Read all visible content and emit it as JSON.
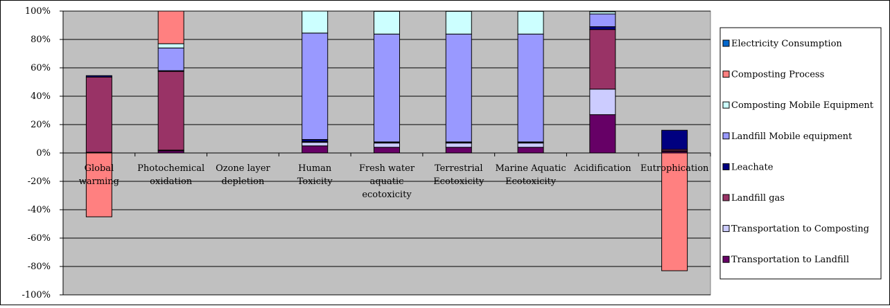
{
  "chart_data": {
    "type": "bar",
    "stacked": true,
    "percent": true,
    "ylim": [
      -100,
      100
    ],
    "ytick_step": 20,
    "grid": true,
    "legend_position": "right",
    "plot_background": "#c0c0c0",
    "categories": [
      "Global warming",
      "Photochemical oxidation",
      "Ozone layer depletion",
      "Human Toxicity",
      "Fresh water aquatic ecotoxicity",
      "Terrestrial Ecotoxicity",
      "Marine Aquatic Ecotoxicity",
      "Acidification",
      "Eutrophication"
    ],
    "category_label_lines": [
      [
        "Global",
        "warming"
      ],
      [
        "Photochemical",
        "oxidation"
      ],
      [
        "Ozone layer",
        "depletion"
      ],
      [
        "Human",
        "Toxicity"
      ],
      [
        "Fresh water",
        "aquatic",
        "ecotoxicity"
      ],
      [
        "Terrestrial",
        "Ecotoxicity"
      ],
      [
        "Marine Aquatic",
        "Ecotoxicity"
      ],
      [
        "Acidification"
      ],
      [
        "Eutrophication"
      ]
    ],
    "series": [
      {
        "name": "Transportation to Landfill",
        "color": "#660066",
        "values": [
          0.5,
          1.5,
          0,
          5,
          4,
          4,
          4,
          27,
          1
        ]
      },
      {
        "name": "Transportation to Composting",
        "color": "#ccccff",
        "values": [
          0,
          0.5,
          0,
          2.5,
          3,
          3,
          3,
          18,
          0.5
        ]
      },
      {
        "name": "Landfill gas",
        "color": "#993366",
        "values": [
          53,
          55.5,
          0,
          0.5,
          0.3,
          0.3,
          0.3,
          42,
          1
        ]
      },
      {
        "name": "Leachate",
        "color": "#000080",
        "values": [
          1,
          0.5,
          0,
          1.5,
          0.5,
          0.5,
          0.5,
          2,
          13.5
        ]
      },
      {
        "name": "Landfill Mobile equipment",
        "color": "#9999ff",
        "values": [
          0,
          16,
          0,
          75,
          76,
          76,
          76,
          9,
          0
        ]
      },
      {
        "name": "Composting Mobile Equipment",
        "color": "#ccffff",
        "values": [
          0,
          3,
          0,
          15.5,
          16,
          16,
          16,
          1.5,
          0
        ]
      },
      {
        "name": "Composting Process",
        "color": "#ff8080",
        "values": [
          -45,
          23,
          0,
          0,
          0,
          0,
          0,
          0,
          -83
        ]
      },
      {
        "name": "Electricity Consumption",
        "color": "#0066cc",
        "values": [
          0,
          0,
          0,
          0,
          0,
          0,
          0,
          0,
          0
        ]
      }
    ],
    "legend_order": [
      "Electricity Consumption",
      "Composting Process",
      "Composting Mobile Equipment",
      "Landfill Mobile equipment",
      "Leachate",
      "Landfill gas",
      "Transportation to Composting",
      "Transportation to Landfill"
    ]
  }
}
